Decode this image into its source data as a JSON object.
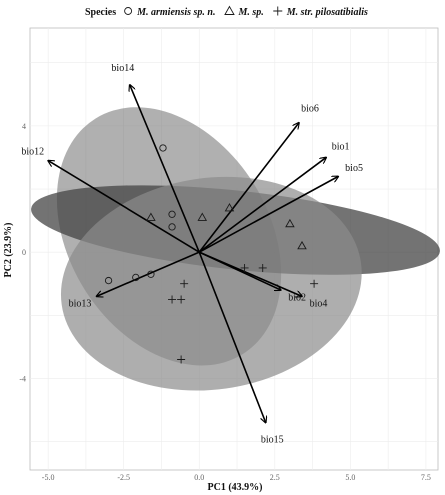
{
  "chart_data": {
    "type": "scatter",
    "subtype": "pca-biplot",
    "xlabel": "PC1 (43.9%)",
    "ylabel": "PC2 (23.9%)",
    "xlim": [
      -5.6,
      7.9
    ],
    "ylim": [
      -6.9,
      7.1
    ],
    "x_ticks": [
      -5.0,
      -2.5,
      0.0,
      2.5,
      5.0,
      7.5
    ],
    "x_tick_labels": [
      "-5.0",
      "-2.5",
      "0.0",
      "2.5",
      "5.0",
      "7.5"
    ],
    "y_ticks": [
      -4,
      0,
      4
    ],
    "y_tick_labels": [
      "-4",
      "0",
      "4"
    ],
    "grid": true,
    "legend": {
      "position": "top",
      "title": "Species",
      "entries": [
        {
          "symbol": "circle",
          "label": "M. armiensis sp. n."
        },
        {
          "symbol": "triangle",
          "label": "M. sp."
        },
        {
          "symbol": "plus",
          "label": "M. str. pilosatibialis"
        }
      ]
    },
    "ellipses": [
      {
        "series": "M. armiensis sp. n.",
        "center": [
          -1.0,
          0.5
        ],
        "rx": 3.3,
        "ry": 4.4,
        "angle": 32,
        "color": "#6f6f6f",
        "opacity": 0.55
      },
      {
        "series": "M. sp.",
        "center": [
          1.2,
          0.7
        ],
        "rx": 6.8,
        "ry": 1.25,
        "angle": -6,
        "color": "#444444",
        "opacity": 0.75
      },
      {
        "series": "M. str. pilosatibialis",
        "center": [
          0.4,
          -1.0
        ],
        "rx": 5.0,
        "ry": 3.35,
        "angle": 8,
        "color": "#8c8c8c",
        "opacity": 0.7
      }
    ],
    "series": [
      {
        "name": "M. armiensis sp. n.",
        "symbol": "circle",
        "points": [
          [
            -1.2,
            3.3
          ],
          [
            -0.9,
            1.2
          ],
          [
            -0.9,
            0.8
          ],
          [
            -1.6,
            -0.7
          ],
          [
            -2.1,
            -0.8
          ],
          [
            -3.0,
            -0.9
          ]
        ]
      },
      {
        "name": "M. sp.",
        "symbol": "triangle",
        "points": [
          [
            -1.6,
            1.1
          ],
          [
            0.1,
            1.1
          ],
          [
            1.0,
            1.4
          ],
          [
            3.0,
            0.9
          ],
          [
            3.4,
            0.2
          ]
        ]
      },
      {
        "name": "M. str. pilosatibialis",
        "symbol": "plus",
        "points": [
          [
            -0.5,
            -1.0
          ],
          [
            1.5,
            -0.5
          ],
          [
            2.1,
            -0.5
          ],
          [
            3.8,
            -1.0
          ],
          [
            -0.9,
            -1.5
          ],
          [
            -0.6,
            -1.5
          ],
          [
            -0.6,
            -3.4
          ]
        ]
      }
    ],
    "loadings": [
      {
        "name": "bio14",
        "x": -2.3,
        "y": 5.3
      },
      {
        "name": "bio6",
        "x": 3.3,
        "y": 4.1
      },
      {
        "name": "bio1",
        "x": 4.2,
        "y": 3.0
      },
      {
        "name": "bio5",
        "x": 4.6,
        "y": 2.4
      },
      {
        "name": "bio12",
        "x": -5.0,
        "y": 2.9
      },
      {
        "name": "bio13",
        "x": -3.4,
        "y": -1.4
      },
      {
        "name": "bio2",
        "x": 2.7,
        "y": -1.2
      },
      {
        "name": "bio4",
        "x": 3.4,
        "y": -1.4
      },
      {
        "name": "bio15",
        "x": 2.2,
        "y": -5.4
      }
    ]
  }
}
